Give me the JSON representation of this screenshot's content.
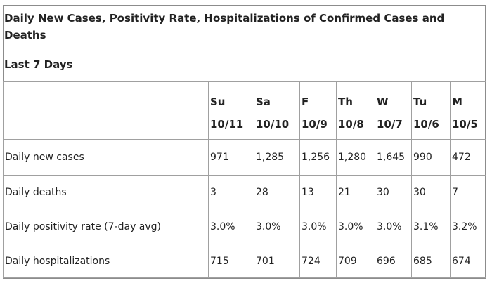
{
  "title": "Daily New Cases, Positivity Rate, Hospitalizations of Confirmed Cases and Deaths",
  "subtitle": "Last 7 Days",
  "days": [
    {
      "day": "Su",
      "date": "10/11"
    },
    {
      "day": "Sa",
      "date": "10/10"
    },
    {
      "day": "F",
      "date": "10/9"
    },
    {
      "day": "Th",
      "date": "10/8"
    },
    {
      "day": "W",
      "date": "10/7"
    },
    {
      "day": "Tu",
      "date": "10/6"
    },
    {
      "day": "M",
      "date": "10/5"
    }
  ],
  "rows": [
    {
      "label": "Daily new cases",
      "values": [
        "971",
        "1,285",
        "1,256",
        "1,280",
        "1,645",
        "990",
        "472"
      ]
    },
    {
      "label": "Daily deaths",
      "values": [
        "3",
        "28",
        "13",
        "21",
        "30",
        "30",
        "7"
      ]
    },
    {
      "label": "Daily positivity rate (7-day avg)",
      "values": [
        "3.0%",
        "3.0%",
        "3.0%",
        "3.0%",
        "3.0%",
        "3.1%",
        "3.2%"
      ]
    },
    {
      "label": "Daily hospitalizations",
      "values": [
        "715",
        "701",
        "724",
        "709",
        "696",
        "685",
        "674"
      ]
    }
  ]
}
